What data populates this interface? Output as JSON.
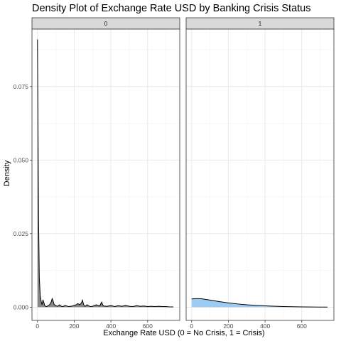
{
  "chart_data": {
    "type": "area",
    "title": "Density Plot of Exchange Rate USD by Banking Crisis Status",
    "xlabel": "Exchange Rate USD (0 = No Crisis, 1 = Crisis)",
    "ylabel": "Density",
    "xlim": [
      -30,
      775
    ],
    "ylim": [
      -0.0045,
      0.0945
    ],
    "x_ticks": [
      0,
      200,
      400,
      600
    ],
    "y_ticks": [
      0.0,
      0.025,
      0.05,
      0.075
    ],
    "y_tick_labels": [
      "0.000",
      "0.025",
      "0.050",
      "0.075"
    ],
    "grid": true,
    "panels": [
      {
        "label": "0",
        "fill_color": "#888888",
        "x": [
          0,
          3,
          6,
          10,
          15,
          20,
          25,
          30,
          35,
          40,
          45,
          50,
          55,
          60,
          65,
          70,
          75,
          80,
          85,
          90,
          100,
          110,
          120,
          130,
          140,
          150,
          170,
          190,
          210,
          220,
          230,
          240,
          245,
          250,
          255,
          260,
          270,
          280,
          290,
          300,
          320,
          340,
          345,
          350,
          355,
          360,
          380,
          400,
          420,
          440,
          460,
          480,
          500,
          520,
          540,
          560,
          580,
          600,
          620,
          640,
          660,
          680,
          700,
          720,
          740
        ],
        "y": [
          0.091,
          0.06,
          0.03,
          0.01,
          0.004,
          0.002,
          0.0008,
          0.0025,
          0.0015,
          0.0005,
          0.0003,
          0.0002,
          0.0004,
          0.0006,
          0.0008,
          0.0012,
          0.0018,
          0.0029,
          0.0022,
          0.001,
          0.0005,
          0.0003,
          0.0008,
          0.0003,
          0.0002,
          0.0006,
          0.0002,
          0.0004,
          0.0008,
          0.0012,
          0.0008,
          0.0015,
          0.0024,
          0.0012,
          0.0004,
          0.0003,
          0.0008,
          0.0004,
          0.0002,
          0.0003,
          0.0008,
          0.0004,
          0.0012,
          0.0017,
          0.0008,
          0.0004,
          0.0003,
          0.0006,
          0.0002,
          0.0005,
          0.0003,
          0.0006,
          0.0003,
          0.0002,
          0.0005,
          0.0003,
          0.0004,
          0.0002,
          0.0003,
          0.0002,
          0.0003,
          0.0002,
          0.0002,
          0.0001,
          0.0001
        ]
      },
      {
        "label": "1",
        "fill_color": "#9ecbf2",
        "x": [
          0,
          20,
          40,
          60,
          80,
          100,
          150,
          200,
          250,
          300,
          350,
          400,
          450,
          500,
          550,
          600,
          650,
          700,
          740
        ],
        "y": [
          0.0028,
          0.0029,
          0.0029,
          0.0028,
          0.0026,
          0.0024,
          0.0019,
          0.00145,
          0.0011,
          0.0008,
          0.0006,
          0.00045,
          0.00032,
          0.00022,
          0.00015,
          0.0001,
          7e-05,
          4e-05,
          2e-05
        ]
      }
    ]
  }
}
